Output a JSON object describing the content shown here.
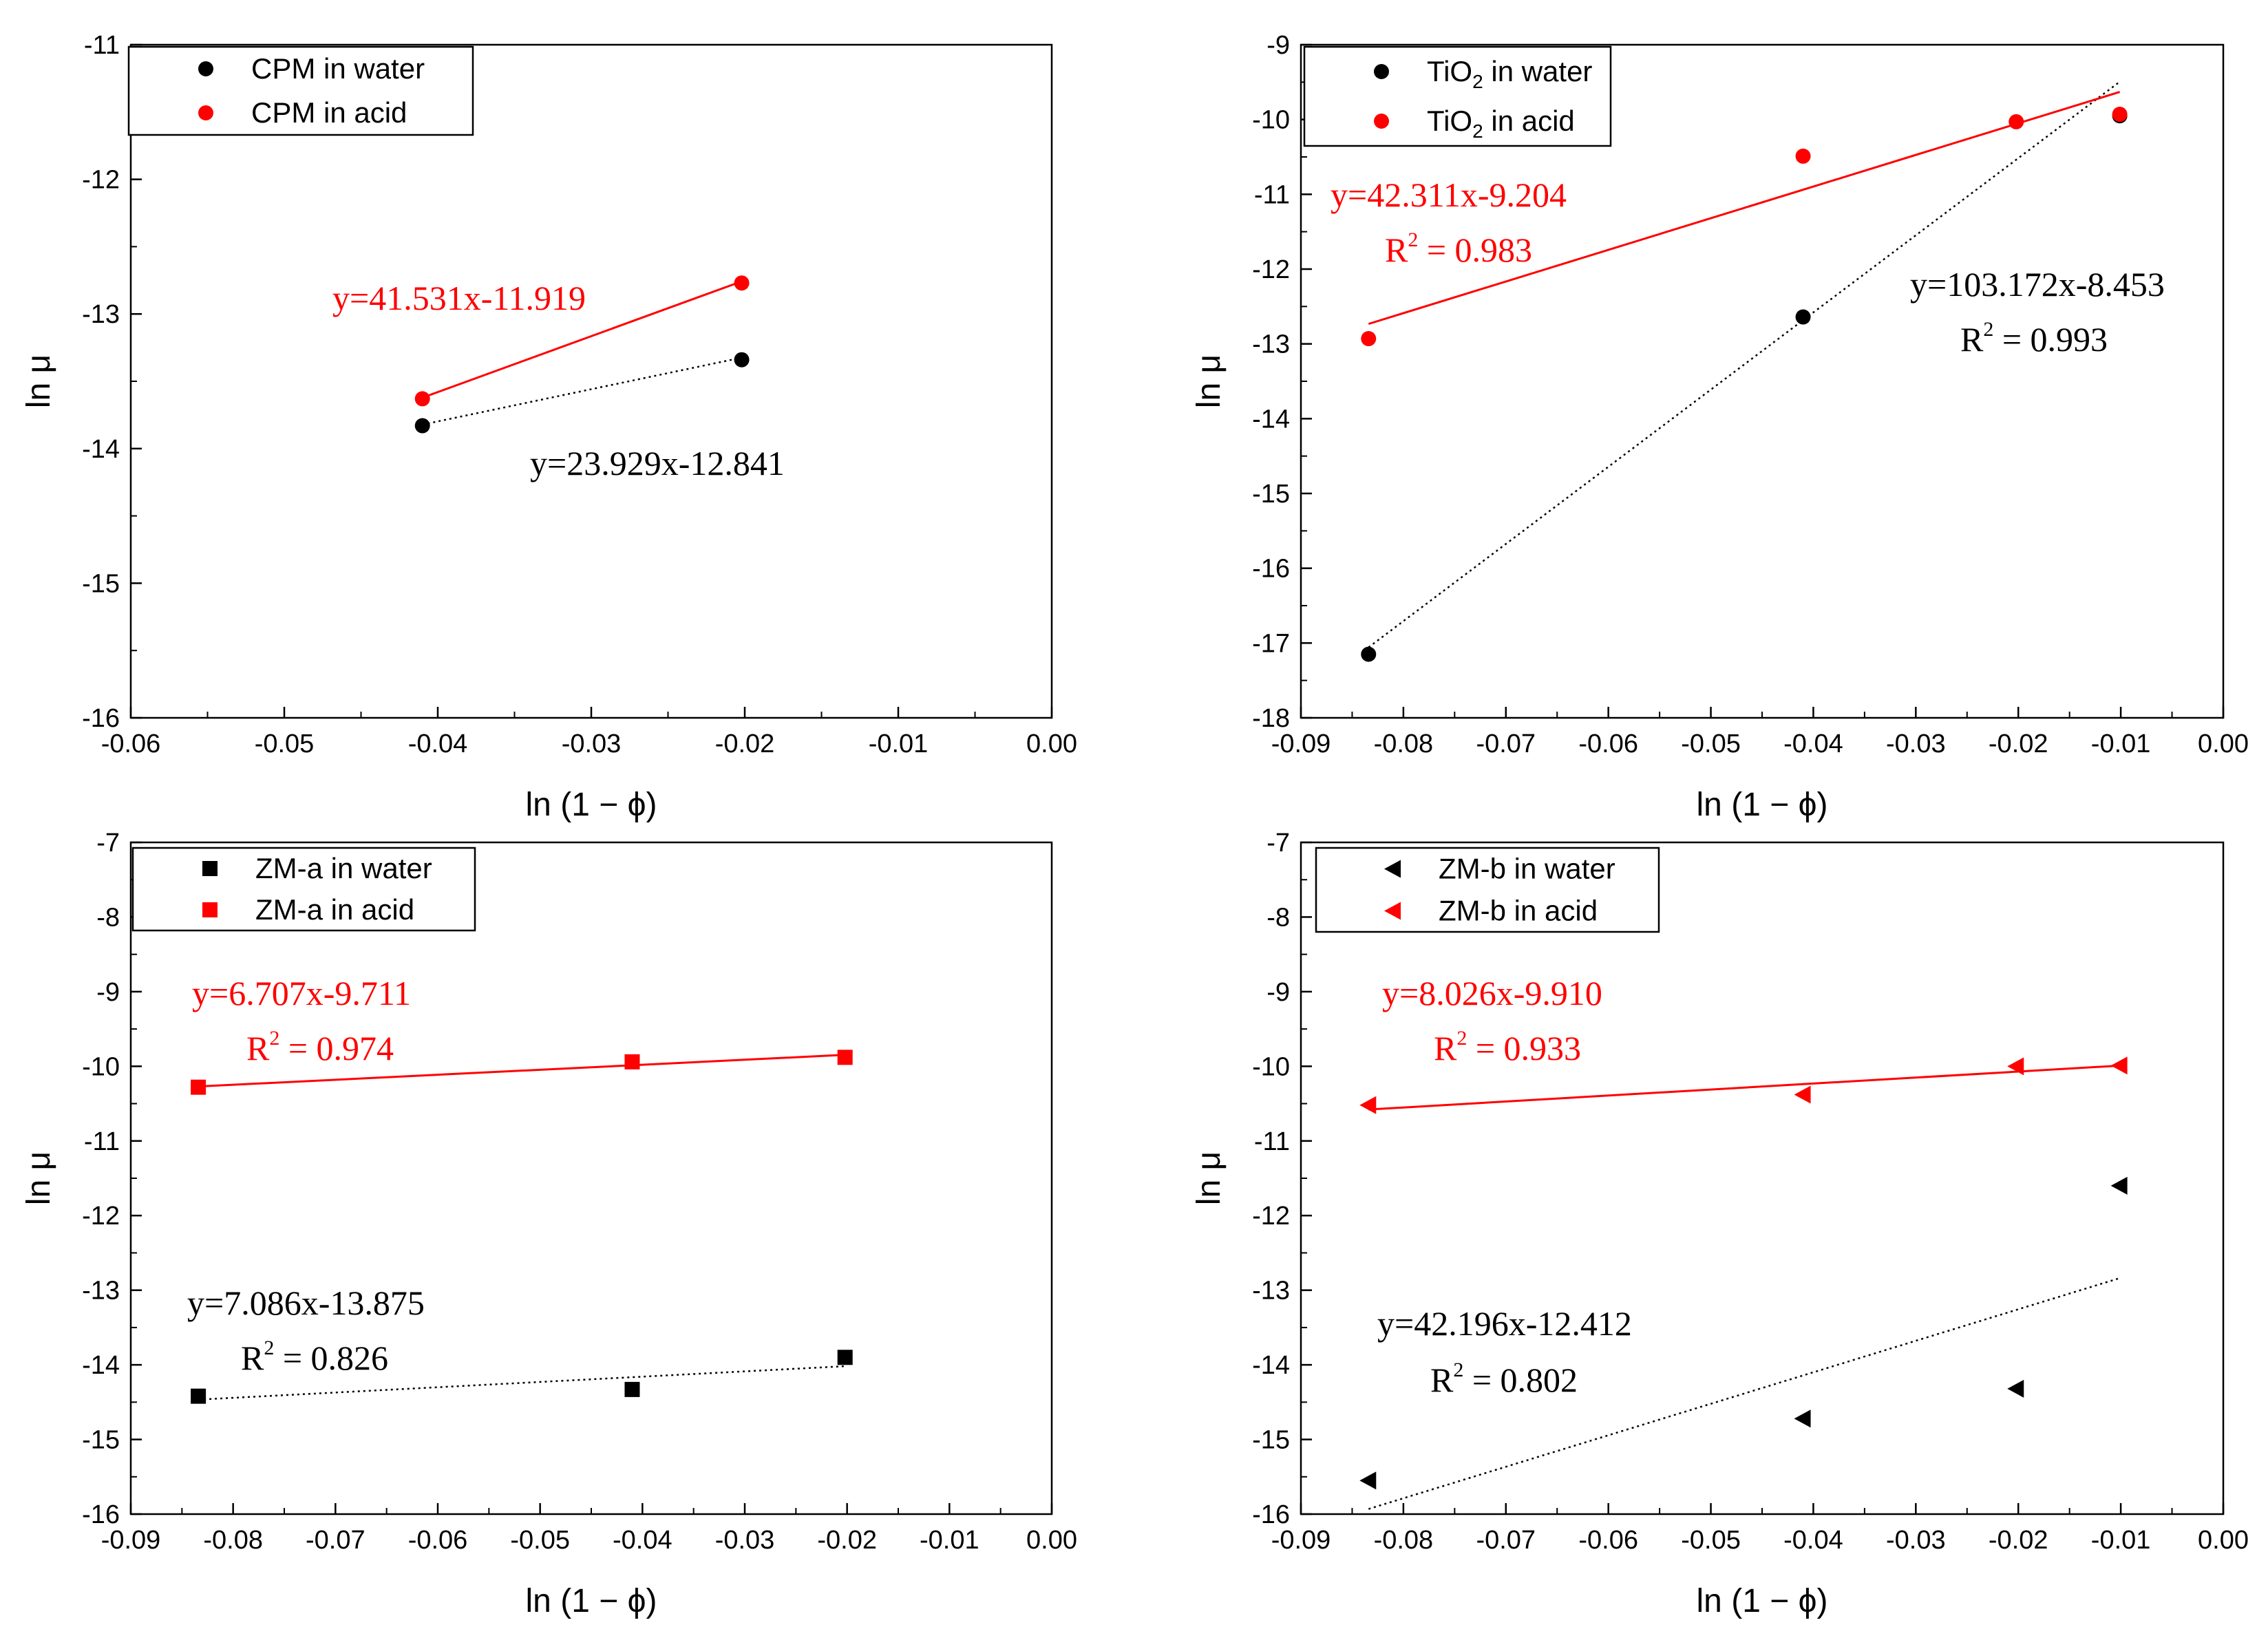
{
  "chart_data": [
    {
      "type": "scatter",
      "xlabel": "ln (1 − ϕ)",
      "ylabel": "ln μ",
      "xlim": [
        -0.06,
        0.0
      ],
      "ylim": [
        -16,
        -11
      ],
      "xticks": [
        -0.06,
        -0.05,
        -0.04,
        -0.03,
        -0.02,
        -0.01,
        0.0
      ],
      "yticks": [
        -16,
        -15,
        -14,
        -13,
        -12,
        -11
      ],
      "xtick_labels": [
        "-0.06",
        "-0.05",
        "-0.04",
        "-0.03",
        "-0.02",
        "-0.01",
        "0.00"
      ],
      "legend_position": "top-left",
      "series": [
        {
          "name": "CPM in water",
          "legend_main": "CPM in water",
          "legend_sub": "",
          "legend_rest": "",
          "color": "#000000",
          "marker": "circle",
          "x": [
            -0.041,
            -0.0202
          ],
          "y": [
            -13.83,
            -13.34
          ],
          "fit": {
            "slope": 23.929,
            "intercept": -12.841,
            "x_range": [
              -0.041,
              -0.0202
            ],
            "style": "dotted"
          },
          "equation": "y=23.929x-12.841",
          "r2_label": "",
          "r2_value": ""
        },
        {
          "name": "CPM in acid",
          "legend_main": "CPM in acid",
          "legend_sub": "",
          "legend_rest": "",
          "color": "#ff0000",
          "marker": "circle",
          "x": [
            -0.041,
            -0.0202
          ],
          "y": [
            -13.63,
            -12.77
          ],
          "fit": {
            "slope": 41.531,
            "intercept": -11.919,
            "x_range": [
              -0.041,
              -0.0202
            ],
            "style": "solid"
          },
          "equation": "y=41.531x-11.919",
          "r2_label": "",
          "r2_value": ""
        }
      ]
    },
    {
      "type": "scatter",
      "xlabel": "ln (1 − ϕ)",
      "ylabel": "ln μ",
      "xlim": [
        -0.09,
        0.0
      ],
      "ylim": [
        -18,
        -9
      ],
      "xticks": [
        -0.09,
        -0.08,
        -0.07,
        -0.06,
        -0.05,
        -0.04,
        -0.03,
        -0.02,
        -0.01,
        0.0
      ],
      "yticks": [
        -18,
        -17,
        -16,
        -15,
        -14,
        -13,
        -12,
        -11,
        -10,
        -9
      ],
      "xtick_labels": [
        "-0.09",
        "-0.08",
        "-0.07",
        "-0.06",
        "-0.05",
        "-0.04",
        "-0.03",
        "-0.02",
        "-0.01",
        "0.00"
      ],
      "legend_position": "top-left",
      "series": [
        {
          "name": "TiO2 in water",
          "legend_main": "TiO",
          "legend_sub": "2",
          "legend_rest": " in water",
          "color": "#000000",
          "marker": "circle",
          "x": [
            -0.0834,
            -0.041,
            -0.0101
          ],
          "y": [
            -17.15,
            -12.64,
            -9.95
          ],
          "fit": {
            "slope": 103.172,
            "intercept": -8.453,
            "x_range": [
              -0.0834,
              -0.0101
            ],
            "style": "dotted"
          },
          "equation": "y=103.172x-8.453",
          "r2_label": "R",
          "r2_value": " = 0.993"
        },
        {
          "name": "TiO2 in acid",
          "legend_main": "TiO",
          "legend_sub": "2",
          "legend_rest": " in acid",
          "color": "#ff0000",
          "marker": "circle",
          "x": [
            -0.0834,
            -0.041,
            -0.0202,
            -0.0101
          ],
          "y": [
            -12.93,
            -10.49,
            -10.03,
            -9.93
          ],
          "fit": {
            "slope": 42.311,
            "intercept": -9.204,
            "x_range": [
              -0.0834,
              -0.0101
            ],
            "style": "solid"
          },
          "equation": "y=42.311x-9.204",
          "r2_label": "R",
          "r2_value": " = 0.983"
        }
      ]
    },
    {
      "type": "scatter",
      "xlabel": "ln (1 − ϕ)",
      "ylabel": "ln μ",
      "xlim": [
        -0.09,
        0.0
      ],
      "ylim": [
        -16,
        -7
      ],
      "xticks": [
        -0.09,
        -0.08,
        -0.07,
        -0.06,
        -0.05,
        -0.04,
        -0.03,
        -0.02,
        -0.01,
        0.0
      ],
      "yticks": [
        -16,
        -15,
        -14,
        -13,
        -12,
        -11,
        -10,
        -9,
        -8,
        -7
      ],
      "xtick_labels": [
        "-0.09",
        "-0.08",
        "-0.07",
        "-0.06",
        "-0.05",
        "-0.04",
        "-0.03",
        "-0.02",
        "-0.01",
        "0.00"
      ],
      "legend_position": "top-left",
      "series": [
        {
          "name": "ZM-a in water",
          "legend_main": "ZM-a in water",
          "legend_sub": "",
          "legend_rest": "",
          "color": "#000000",
          "marker": "square",
          "x": [
            -0.0834,
            -0.041,
            -0.0202
          ],
          "y": [
            -14.42,
            -14.33,
            -13.9
          ],
          "fit": {
            "slope": 7.086,
            "intercept": -13.875,
            "x_range": [
              -0.0834,
              -0.0202
            ],
            "style": "dotted"
          },
          "equation": "y=7.086x-13.875",
          "r2_label": "R",
          "r2_value": " = 0.826"
        },
        {
          "name": "ZM-a in acid",
          "legend_main": "ZM-a in acid",
          "legend_sub": "",
          "legend_rest": "",
          "color": "#ff0000",
          "marker": "square",
          "x": [
            -0.0834,
            -0.041,
            -0.0202
          ],
          "y": [
            -10.28,
            -9.94,
            -9.88
          ],
          "fit": {
            "slope": 6.707,
            "intercept": -9.711,
            "x_range": [
              -0.0834,
              -0.0202
            ],
            "style": "solid"
          },
          "equation": "y=6.707x-9.711",
          "r2_label": "R",
          "r2_value": " = 0.974"
        }
      ]
    },
    {
      "type": "scatter",
      "xlabel": "ln (1 − ϕ)",
      "ylabel": "ln μ",
      "xlim": [
        -0.09,
        0.0
      ],
      "ylim": [
        -16,
        -7
      ],
      "xticks": [
        -0.09,
        -0.08,
        -0.07,
        -0.06,
        -0.05,
        -0.04,
        -0.03,
        -0.02,
        -0.01,
        0.0
      ],
      "yticks": [
        -16,
        -15,
        -14,
        -13,
        -12,
        -11,
        -10,
        -9,
        -8,
        -7
      ],
      "xtick_labels": [
        "-0.09",
        "-0.08",
        "-0.07",
        "-0.06",
        "-0.05",
        "-0.04",
        "-0.03",
        "-0.02",
        "-0.01",
        "0.00"
      ],
      "legend_position": "top-left",
      "series": [
        {
          "name": "ZM-b in water",
          "legend_main": "ZM-b in water",
          "legend_sub": "",
          "legend_rest": "",
          "color": "#000000",
          "marker": "triangle-left",
          "x": [
            -0.0834,
            -0.041,
            -0.0202,
            -0.0101
          ],
          "y": [
            -15.55,
            -14.72,
            -14.32,
            -11.6
          ],
          "fit": {
            "slope": 42.196,
            "intercept": -12.412,
            "x_range": [
              -0.0834,
              -0.0101
            ],
            "style": "dotted"
          },
          "equation": "y=42.196x-12.412",
          "r2_label": "R",
          "r2_value": " = 0.802"
        },
        {
          "name": "ZM-b in acid",
          "legend_main": "ZM-b in acid",
          "legend_sub": "",
          "legend_rest": "",
          "color": "#ff0000",
          "marker": "triangle-left",
          "x": [
            -0.0834,
            -0.041,
            -0.0202,
            -0.0101
          ],
          "y": [
            -10.52,
            -10.38,
            -10.0,
            -9.99
          ],
          "fit": {
            "slope": 8.026,
            "intercept": -9.91,
            "x_range": [
              -0.0834,
              -0.0101
            ],
            "style": "solid"
          },
          "equation": "y=8.026x-9.910",
          "r2_label": "R",
          "r2_value": " = 0.933"
        }
      ]
    }
  ]
}
